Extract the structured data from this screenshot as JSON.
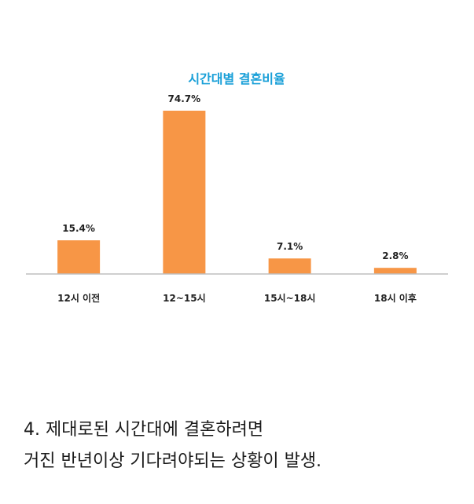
{
  "chart_data": {
    "type": "bar",
    "title": "시간대별 결혼비율",
    "categories": [
      "12시 이전",
      "12~15시",
      "15시~18시",
      "18시 이후"
    ],
    "values": [
      15.4,
      74.7,
      7.1,
      2.8
    ],
    "value_labels": [
      "15.4%",
      "74.7%",
      "7.1%",
      "2.8%"
    ],
    "ylim": [
      0,
      80
    ],
    "grid": false,
    "legend": "none",
    "xlabel": "",
    "ylabel": ""
  },
  "colors": {
    "title": "#1aa0d8",
    "bar": "#f79646",
    "axis": "#bfbfbf",
    "text": "#222222"
  },
  "caption": {
    "line1": "4. 제대로된 시간대에 결혼하려면",
    "line2": "거진 반년이상 기다려야되는 상황이 발생."
  }
}
